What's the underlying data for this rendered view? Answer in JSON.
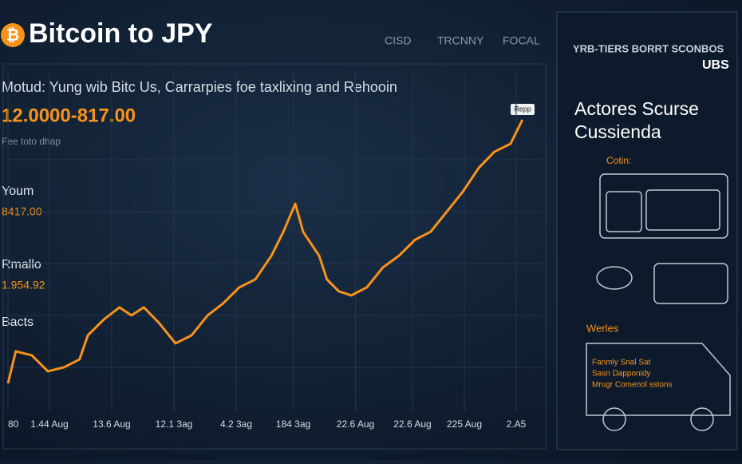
{
  "header": {
    "title": "Bitcoin to JPY",
    "logos": [
      "CISD",
      "TRCNNY",
      "FOCAL"
    ],
    "subtitle": "Motud: Yung wib Bitc Us, Carrarpies foe taxlixing and Rehooin",
    "price": "12.0000-817.00",
    "note": "Fee toto dhap"
  },
  "stats": [
    {
      "label": "Youm",
      "value": "8417.00"
    },
    {
      "label": "Rmallo",
      "value": "1.954.92"
    },
    {
      "label": "Bacts"
    }
  ],
  "tooltip": "Repp",
  "panel": {
    "brand": "YRB-TIERS BORRT SCONBOS",
    "logo": "UBS",
    "heading": "Actores Scurse Cussienda",
    "section1": "Cotin:",
    "section2": "Werles",
    "lines": [
      "Fanmly Snal Sat",
      "Sasn Dapponidy",
      "Mrugr Comenol sstons"
    ]
  },
  "chart_data": {
    "type": "line",
    "x": [
      0,
      1.5,
      4.6,
      7.7,
      10.8,
      13.8,
      15.4,
      18.5,
      21.5,
      23.8,
      26.2,
      29.2,
      32.3,
      35.4,
      38.5,
      41.5,
      44.6,
      47.7,
      50.8,
      53.1,
      55.4,
      56.9,
      60,
      61.5,
      63.8,
      66.2,
      69.2,
      72.3,
      75.4,
      78.5,
      81.5,
      84.6,
      87.7,
      90.8,
      93.8,
      96.9,
      99.2
    ],
    "series": [
      {
        "color": "#f7931a",
        "values": [
          9.1,
          19.5,
          18.2,
          13,
          14.3,
          16.9,
          24.7,
          29.9,
          33.8,
          31.2,
          33.8,
          28.6,
          22.1,
          24.7,
          31.2,
          35.1,
          40.3,
          42.9,
          50.6,
          58.4,
          67.5,
          58.4,
          50.6,
          42.9,
          39,
          37.7,
          40.3,
          46.8,
          50.6,
          55.8,
          58.4,
          64.9,
          71.4,
          79.2,
          84.4,
          87,
          94.8
        ]
      }
    ],
    "xlim": [
      0,
      100
    ],
    "ylim": [
      0,
      100
    ],
    "xticks": [
      {
        "value": 0,
        "label": "80"
      },
      {
        "value": 8,
        "label": "1.44 Aug"
      },
      {
        "value": 20,
        "label": "13.6 Aug"
      },
      {
        "value": 32,
        "label": "12.1 3ag"
      },
      {
        "value": 44,
        "label": "4.2 3ag"
      },
      {
        "value": 55,
        "label": "184 3ag"
      },
      {
        "value": 67,
        "label": "22.6 Aug"
      },
      {
        "value": 78,
        "label": "22.6 Aug"
      },
      {
        "value": 88,
        "label": "225 Aug"
      },
      {
        "value": 98,
        "label": "2.A5"
      }
    ],
    "grid": true
  }
}
